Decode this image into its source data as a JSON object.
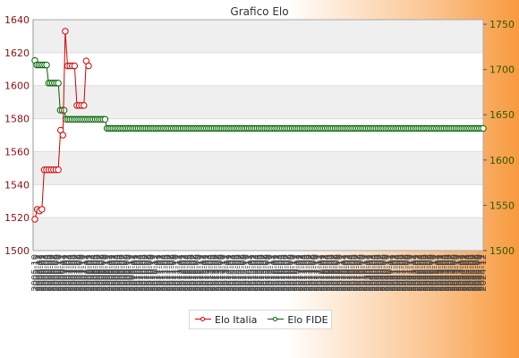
{
  "chart_data": {
    "type": "line",
    "title": "Grafico Elo",
    "colors": {
      "italia": "#d40000",
      "fide": "#006400"
    },
    "y_left": {
      "min": 1500,
      "max": 1640,
      "ticks": [
        1500,
        1520,
        1540,
        1560,
        1580,
        1600,
        1620,
        1640
      ]
    },
    "y_right": {
      "min": 1500,
      "max": 1755,
      "ticks": [
        1500,
        1550,
        1600,
        1650,
        1700,
        1750
      ]
    },
    "x_tick_labels": [
      "2005-10",
      "2005-11",
      "2005-12",
      "2006-01",
      "2006-02",
      "2006-03",
      "2006-04",
      "2006-05",
      "2006-06",
      "2006-07",
      "2006-08",
      "2006-09",
      "2006-10",
      "2006-11",
      "2006-12",
      "2007-01",
      "2007-02",
      "2007-03",
      "2007-04",
      "2007-05",
      "2007-06",
      "2007-07",
      "2007-08",
      "2007-09",
      "2007-10",
      "2007-11",
      "2007-12",
      "2008-01",
      "2008-02",
      "2008-03",
      "2008-04",
      "2008-05",
      "2008-06",
      "2008-07",
      "2008-08",
      "2008-09",
      "2008-10",
      "2008-11",
      "2008-12",
      "2009-01",
      "2009-02",
      "2009-03",
      "2009-04",
      "2009-05",
      "2009-06",
      "2009-07",
      "2009-08",
      "2009-09",
      "2009-10",
      "2009-11",
      "2009-12",
      "2010-01",
      "2010-02",
      "2010-03",
      "2010-04",
      "2010-05",
      "2010-06",
      "2010-07",
      "2010-08",
      "2010-09",
      "2010-10",
      "2010-11",
      "2010-12",
      "2011-01",
      "2011-02",
      "2011-03",
      "2011-04",
      "2011-05",
      "2011-06",
      "2011-07",
      "2011-08",
      "2011-09",
      "2011-10",
      "2011-11",
      "2011-12",
      "2012-01",
      "2012-02",
      "2012-03",
      "2012-04",
      "2012-05",
      "2012-06",
      "2012-07",
      "2012-08",
      "2012-09",
      "2012-10",
      "2012-11",
      "2012-12",
      "2013-01",
      "2013-02",
      "2013-03",
      "2013-04",
      "2013-05",
      "2013-06",
      "2013-07",
      "2013-08",
      "2013-09",
      "2013-10",
      "2013-11",
      "2013-12",
      "2014-01",
      "2014-02",
      "2014-03",
      "2014-04",
      "2014-05",
      "2014-06",
      "2014-07",
      "2014-08",
      "2014-09",
      "2014-10",
      "2014-11",
      "2014-12",
      "2015-01",
      "2015-02",
      "2015-03",
      "2015-04",
      "2015-05",
      "2015-06",
      "2015-07",
      "2015-08",
      "2015-09",
      "2015-10",
      "2015-11",
      "2015-12",
      "2016-01",
      "2016-02",
      "2016-03",
      "2016-04",
      "2016-05",
      "2016-06",
      "2016-07",
      "2016-08",
      "2016-09",
      "2016-10",
      "2016-11",
      "2016-12",
      "2017-01",
      "2017-02",
      "2017-03",
      "2017-04",
      "2017-05",
      "2017-06",
      "2017-07",
      "2017-08",
      "2017-09",
      "2017-10",
      "2017-11",
      "2017-12",
      "2018-01",
      "2018-02",
      "2018-03",
      "2018-04",
      "2018-05",
      "2018-06",
      "2018-07",
      "2018-08",
      "2018-09",
      "2018-10",
      "2018-11",
      "2018-12",
      "2019-01",
      "2019-02",
      "2019-03",
      "2019-04",
      "2019-05",
      "2019-06",
      "2019-07",
      "2019-08",
      "2019-09",
      "2019-10",
      "2019-11",
      "2019-12",
      "2020-01",
      "2020-02",
      "2020-03",
      "2020-04",
      "2020-05",
      "2020-06",
      "2020-07",
      "2020-08",
      "2020-09",
      "2020-10",
      "2020-11",
      "2020-12",
      "2021-01",
      "2021-02",
      "2021-03",
      "2021-04",
      "2021-05",
      "2021-06",
      "2021-07",
      "2021-08",
      "2021-09",
      "2021-10",
      "2021-11",
      "2021-12",
      "2022-01",
      "2022-02",
      "2022-03",
      "2022-04",
      "2022-05",
      "2022-06",
      "2022-07",
      "2022-08",
      "2022-09",
      "2022-10",
      "2022-11",
      "2022-12",
      "2023-01",
      "2023-02",
      "2023-03",
      "2023-04",
      "2023-05",
      "2023-06",
      "2023-07",
      "2023-08",
      "2023-09",
      "2023-10",
      "2023-11",
      "2023-12",
      "2024-01",
      "2024-02",
      "2024-03",
      "2024-04",
      "2024-05",
      "2024-06",
      "2024-07",
      "2024-08",
      "2024-09",
      "2024-10",
      "2024-11",
      "2024-12"
    ],
    "series": [
      {
        "name": "Elo Italia",
        "axis": "left",
        "values": [
          1519,
          1525,
          1524,
          1525,
          1549,
          1549,
          1549,
          1549,
          1549,
          1549,
          1549,
          1573,
          1570,
          1633,
          1612,
          1612,
          1612,
          1612,
          1588,
          1588,
          1588,
          1588,
          1615,
          1612
        ]
      },
      {
        "name": "Elo FIDE",
        "axis": "right",
        "values": [
          1710,
          1705,
          1705,
          1705,
          1705,
          1705,
          1705,
          1685,
          1685,
          1685,
          1685,
          1685,
          1685,
          1655,
          1655,
          1655,
          1645,
          1645,
          1645,
          1645,
          1645,
          1645,
          1645,
          1645,
          1645,
          1645,
          1645,
          1645,
          1645,
          1645,
          1645,
          1645,
          1645,
          1645,
          1645,
          1645,
          1645,
          1635,
          1635,
          1635,
          1635,
          1635,
          1635,
          1635,
          1635,
          1635,
          1635,
          1635,
          1635,
          1635,
          1635,
          1635,
          1635,
          1635,
          1635,
          1635,
          1635,
          1635,
          1635,
          1635,
          1635,
          1635,
          1635,
          1635,
          1635,
          1635,
          1635,
          1635,
          1635,
          1635,
          1635,
          1635,
          1635,
          1635,
          1635,
          1635,
          1635,
          1635,
          1635,
          1635,
          1635,
          1635,
          1635,
          1635,
          1635,
          1635,
          1635,
          1635,
          1635,
          1635,
          1635,
          1635,
          1635,
          1635,
          1635,
          1635,
          1635,
          1635,
          1635,
          1635,
          1635,
          1635,
          1635,
          1635,
          1635,
          1635,
          1635,
          1635,
          1635,
          1635,
          1635,
          1635,
          1635,
          1635,
          1635,
          1635,
          1635,
          1635,
          1635,
          1635,
          1635,
          1635,
          1635,
          1635,
          1635,
          1635,
          1635,
          1635,
          1635,
          1635,
          1635,
          1635,
          1635,
          1635,
          1635,
          1635,
          1635,
          1635,
          1635,
          1635,
          1635,
          1635,
          1635,
          1635,
          1635,
          1635,
          1635,
          1635,
          1635,
          1635,
          1635,
          1635,
          1635,
          1635,
          1635,
          1635,
          1635,
          1635,
          1635,
          1635,
          1635,
          1635,
          1635,
          1635,
          1635,
          1635,
          1635,
          1635,
          1635,
          1635,
          1635,
          1635,
          1635,
          1635,
          1635,
          1635,
          1635,
          1635,
          1635,
          1635,
          1635,
          1635,
          1635,
          1635,
          1635,
          1635,
          1635,
          1635,
          1635,
          1635,
          1635,
          1635,
          1635,
          1635,
          1635,
          1635,
          1635,
          1635,
          1635,
          1635,
          1635,
          1635,
          1635,
          1635,
          1635,
          1635,
          1635,
          1635,
          1635,
          1635,
          1635,
          1635,
          1635,
          1635,
          1635,
          1635,
          1635,
          1635,
          1635,
          1635,
          1635,
          1635,
          1635,
          1635,
          1635,
          1635,
          1635,
          1635,
          1635,
          1635,
          1635
        ]
      }
    ],
    "grid": true,
    "legend_position": "bottom-center"
  },
  "legend": {
    "italia_label": "Elo Italia",
    "fide_label": "Elo FIDE"
  }
}
